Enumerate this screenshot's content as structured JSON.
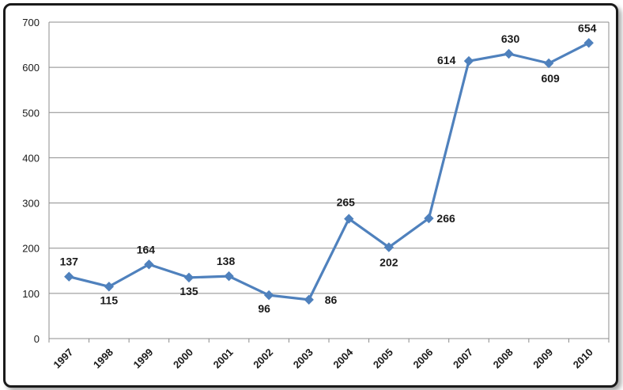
{
  "chart_data": {
    "type": "line",
    "title": "",
    "xlabel": "",
    "ylabel": "",
    "ylim": [
      0,
      700
    ],
    "yticks": [
      "0",
      "100",
      "200",
      "300",
      "400",
      "500",
      "600",
      "700"
    ],
    "grid": true,
    "legend": "none",
    "categories": [
      "1997",
      "1998",
      "1999",
      "2000",
      "2001",
      "2002",
      "2003",
      "2004",
      "2005",
      "2006",
      "2007",
      "2008",
      "2009",
      "2010"
    ],
    "series": [
      {
        "values": [
          137,
          115,
          164,
          135,
          138,
          96,
          86,
          265,
          202,
          266,
          614,
          630,
          609,
          654
        ],
        "labels": [
          "137",
          "115",
          "164",
          "135",
          "138",
          "96",
          "86",
          "265",
          "202",
          "266",
          "614",
          "630",
          "609",
          "654"
        ],
        "color": "#4f81bd",
        "marker": "diamond"
      }
    ]
  }
}
